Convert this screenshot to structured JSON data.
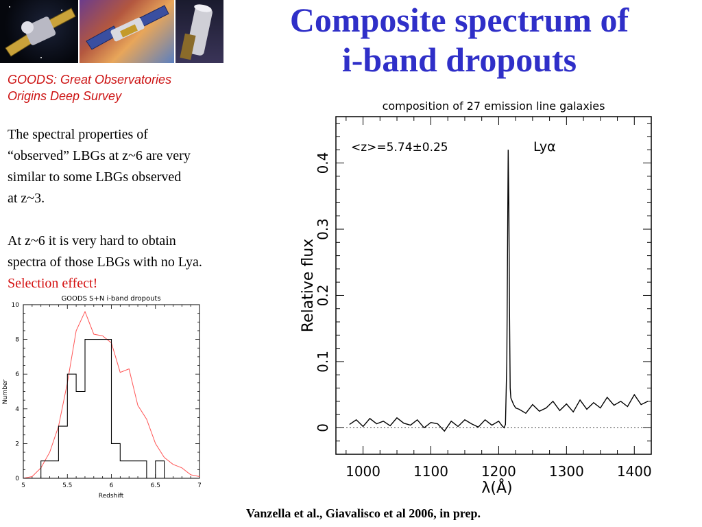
{
  "header": {
    "title_lines": [
      "Composite spectrum of",
      "i-band dropouts"
    ],
    "survey_lines": [
      "GOODS: Great Observatories",
      "Origins Deep Survey"
    ]
  },
  "text": {
    "para1_lines": [
      "The spectral properties of",
      "“observed” LBGs at z~6 are very",
      "similar to some LBGs observed",
      "at z~3."
    ],
    "para2_lines": [
      "At z~6 it is very hard to obtain",
      "spectra of those LBGs with no Lya."
    ],
    "para2_highlight": "Selection effect!",
    "citation": "Vanzella et al., Giavalisco et al 2006, in prep."
  },
  "colors": {
    "title": "#2f2fc8",
    "survey": "#cc1111",
    "highlight": "#d41010",
    "model_curve": "#ff5555"
  },
  "images": [
    "satellite-observatory-1",
    "satellite-observatory-2",
    "satellite-observatory-3"
  ],
  "chart_data": [
    {
      "type": "line",
      "title": "composition of 27 emission line galaxies",
      "annotation": "<z>=5.74±0.25",
      "line_label": "Lyα",
      "xlabel": "λ(Å)",
      "ylabel": "Relative flux",
      "xlim": [
        960,
        1425
      ],
      "ylim": [
        -0.04,
        0.47
      ],
      "xticks": [
        1000,
        1100,
        1200,
        1300,
        1400
      ],
      "yticks": [
        0,
        0.1,
        0.2,
        0.3,
        0.4
      ],
      "xtick_labels": [
        "1000",
        "1100",
        "1200",
        "1300",
        "1400"
      ],
      "ytick_labels": [
        "0",
        "0.1",
        "0.2",
        "0.3",
        "0.4"
      ],
      "zero_line": 0,
      "series": [
        {
          "x": [
            980,
            990,
            1000,
            1010,
            1020,
            1030,
            1040,
            1050,
            1060,
            1070,
            1080,
            1090,
            1100,
            1110,
            1120,
            1130,
            1140,
            1150,
            1160,
            1170,
            1180,
            1190,
            1200,
            1205,
            1208,
            1210,
            1212,
            1214,
            1215,
            1216,
            1217,
            1218,
            1220,
            1222,
            1225,
            1230,
            1240,
            1250,
            1260,
            1270,
            1280,
            1290,
            1300,
            1310,
            1320,
            1330,
            1340,
            1350,
            1360,
            1370,
            1380,
            1390,
            1400,
            1410,
            1420
          ],
          "values": [
            0.005,
            0.012,
            0.002,
            0.014,
            0.006,
            0.01,
            0.003,
            0.015,
            0.007,
            0.004,
            0.012,
            0.0,
            0.008,
            0.006,
            -0.005,
            0.01,
            0.002,
            0.012,
            0.006,
            0.001,
            0.012,
            0.004,
            0.01,
            0.003,
            0.0,
            0.005,
            0.1,
            0.42,
            0.33,
            0.18,
            0.06,
            0.045,
            0.04,
            0.035,
            0.03,
            0.028,
            0.022,
            0.035,
            0.025,
            0.03,
            0.04,
            0.026,
            0.036,
            0.024,
            0.042,
            0.028,
            0.038,
            0.03,
            0.046,
            0.034,
            0.04,
            0.032,
            0.05,
            0.035,
            0.04
          ]
        }
      ]
    },
    {
      "type": "bar",
      "title": "GOODS S+N i-band dropouts",
      "xlabel": "Redshift",
      "ylabel": "Number",
      "xlim": [
        5,
        7
      ],
      "ylim": [
        0,
        10
      ],
      "xticks": [
        5,
        5.5,
        6,
        6.5,
        7
      ],
      "yticks": [
        0,
        2,
        4,
        6,
        8,
        10
      ],
      "xtick_labels": [
        "5",
        "5.5",
        "6",
        "6.5",
        "7"
      ],
      "ytick_labels": [
        "0",
        "2",
        "4",
        "6",
        "8",
        "10"
      ],
      "bin_edges": [
        5.0,
        5.1,
        5.2,
        5.3,
        5.4,
        5.5,
        5.6,
        5.7,
        5.8,
        5.9,
        6.0,
        6.1,
        6.2,
        6.3,
        6.4,
        6.5,
        6.6,
        6.7,
        6.8,
        6.9,
        7.0
      ],
      "counts": [
        0,
        0,
        1,
        1,
        3,
        6,
        5,
        8,
        8,
        8,
        2,
        1,
        1,
        1,
        0,
        1,
        0,
        0,
        0,
        0
      ],
      "series": [
        {
          "x": [
            5.0,
            5.1,
            5.2,
            5.3,
            5.4,
            5.5,
            5.6,
            5.7,
            5.8,
            5.9,
            6.0,
            6.1,
            6.2,
            6.3,
            6.4,
            6.5,
            6.6,
            6.7,
            6.8,
            6.9,
            7.0
          ],
          "values": [
            0.0,
            0.1,
            0.6,
            1.5,
            3.0,
            5.5,
            8.5,
            9.6,
            8.3,
            8.2,
            7.8,
            6.1,
            6.3,
            4.2,
            3.4,
            2.0,
            1.2,
            0.8,
            0.6,
            0.2,
            0.1
          ]
        }
      ]
    }
  ]
}
